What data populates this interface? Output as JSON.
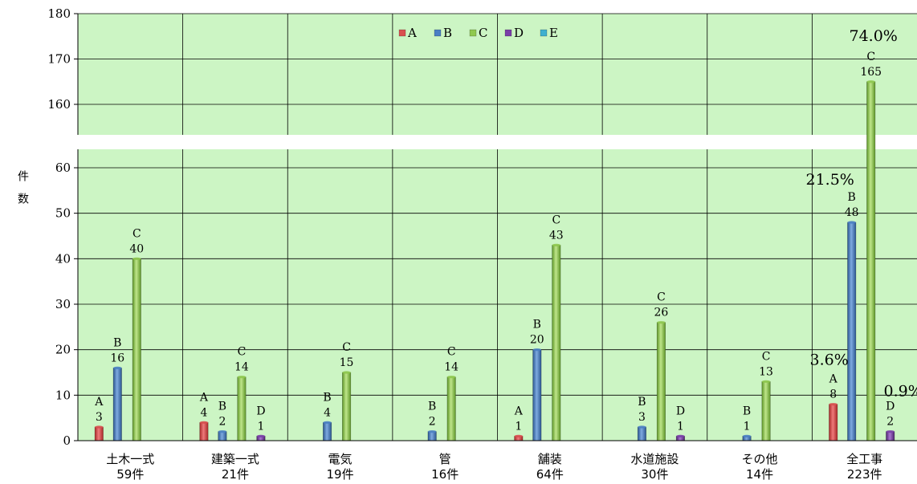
{
  "chart_data": {
    "type": "bar",
    "ylabel": "件　数",
    "y_ticks": [
      0,
      10,
      20,
      30,
      40,
      50,
      60,
      160,
      170,
      180
    ],
    "ylim": [
      0,
      180
    ],
    "axis_break": [
      65,
      155
    ],
    "grid": true,
    "legend_position": "top-center",
    "colors": {
      "plot_bg": "#ccf5c4",
      "A": "#d94f4f",
      "B": "#4a7fc4",
      "C": "#8fc94e",
      "D": "#7a3fa8",
      "E": "#3fb0cf"
    },
    "legend": [
      "A",
      "B",
      "C",
      "D",
      "E"
    ],
    "categories": [
      {
        "name": "土木一式",
        "count": "59件"
      },
      {
        "name": "建築一式",
        "count": "21件"
      },
      {
        "name": "電気",
        "count": "19件"
      },
      {
        "name": "管",
        "count": "16件"
      },
      {
        "name": "舗装",
        "count": "64件"
      },
      {
        "name": "水道施設",
        "count": "30件"
      },
      {
        "name": "その他",
        "count": "14件"
      },
      {
        "name": "全工事",
        "count": "223件"
      }
    ],
    "series": [
      {
        "name": "A",
        "values": [
          3,
          4,
          0,
          0,
          1,
          0,
          0,
          8
        ]
      },
      {
        "name": "B",
        "values": [
          16,
          2,
          4,
          2,
          20,
          3,
          1,
          48
        ]
      },
      {
        "name": "C",
        "values": [
          40,
          14,
          15,
          14,
          43,
          26,
          13,
          165
        ]
      },
      {
        "name": "D",
        "values": [
          0,
          1,
          0,
          0,
          0,
          1,
          0,
          2
        ]
      },
      {
        "name": "E",
        "values": [
          0,
          0,
          0,
          0,
          0,
          0,
          0,
          0
        ]
      }
    ],
    "percent_annotations": [
      {
        "category": "全工事",
        "series": "A",
        "text": "3.6%"
      },
      {
        "category": "全工事",
        "series": "B",
        "text": "21.5%"
      },
      {
        "category": "全工事",
        "series": "C",
        "text": "74.0%"
      },
      {
        "category": "全工事",
        "series": "D",
        "text": "0.9%"
      }
    ]
  }
}
